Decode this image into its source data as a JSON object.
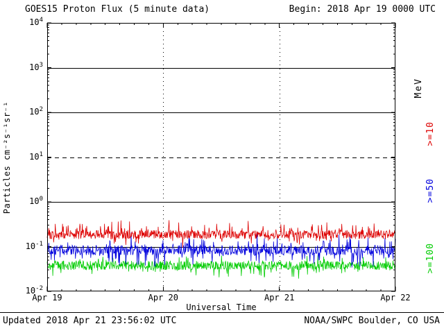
{
  "header": {
    "begin": "Begin: 2018 Apr 19 0000 UTC"
  },
  "footer": {
    "updated": "Updated 2018 Apr 21 23:56:02 UTC",
    "credit": "NOAA/SWPC Boulder, CO USA"
  },
  "chart_data": {
    "type": "line",
    "title": "GOES15 Proton Flux (5 minute data)",
    "xlabel": "Universal Time",
    "ylabel": "Particles cm⁻²s⁻¹sr⁻¹",
    "right_axis_label": "MeV",
    "y_scale": "log",
    "ylim": [
      0.01,
      10000
    ],
    "x_range": [
      "2018 Apr 19 0000 UTC",
      "2018 Apr 22 0000 UTC"
    ],
    "days": 3,
    "points_per_day": 288,
    "x_minor_tick_hours": 3,
    "x_ticks": [
      {
        "label": "Apr 19",
        "day": 0
      },
      {
        "label": "Apr 20",
        "day": 1
      },
      {
        "label": "Apr 21",
        "day": 2
      },
      {
        "label": "Apr 22",
        "day": 3
      }
    ],
    "y_ticks": [
      {
        "mantissa": "10",
        "exponent": "4",
        "value": 10000
      },
      {
        "mantissa": "10",
        "exponent": "3",
        "value": 1000
      },
      {
        "mantissa": "10",
        "exponent": "2",
        "value": 100
      },
      {
        "mantissa": "10",
        "exponent": "1",
        "value": 10
      },
      {
        "mantissa": "10",
        "exponent": "0",
        "value": 1
      },
      {
        "mantissa": "10",
        "exponent": "-1",
        "value": 0.1
      },
      {
        "mantissa": "10",
        "exponent": "-2",
        "value": 0.01
      }
    ],
    "hlines": [
      {
        "value": 1000,
        "style": "solid"
      },
      {
        "value": 100,
        "style": "solid"
      },
      {
        "value": 10,
        "style": "dashed"
      },
      {
        "value": 1,
        "style": "solid"
      },
      {
        "value": 0.1,
        "style": "solid"
      }
    ],
    "vlines": [
      {
        "day": 1,
        "style": "dotted"
      },
      {
        "day": 2,
        "style": "dotted"
      }
    ],
    "grid": "decade horizontal lines, dotted day boundaries",
    "legend_position": "right",
    "series": [
      {
        "name": ">=10",
        "unit": "MeV",
        "color": "#dd0000",
        "typical_level": 0.19,
        "approx_flux_range": [
          0.12,
          0.5
        ],
        "synthesis": {
          "log10_mean": -0.73,
          "log10_jitter": 0.1,
          "spike_probability": 0.18,
          "spike_log10_max": 0.25,
          "spike_upward_fraction": 0.72,
          "seed": 101
        }
      },
      {
        "name": ">=50",
        "unit": "MeV",
        "color": "#0000dd",
        "typical_level": 0.08,
        "approx_flux_range": [
          0.03,
          0.22
        ],
        "synthesis": {
          "log10_mean": -1.08,
          "log10_jitter": 0.11,
          "spike_probability": 0.2,
          "spike_log10_max": 0.32,
          "spike_upward_fraction": 0.5,
          "seed": 202
        }
      },
      {
        "name": ">=100",
        "unit": "MeV",
        "color": "#00cc00",
        "typical_level": 0.04,
        "approx_flux_range": [
          0.02,
          0.08
        ],
        "synthesis": {
          "log10_mean": -1.42,
          "log10_jitter": 0.1,
          "spike_probability": 0.18,
          "spike_log10_max": 0.2,
          "spike_upward_fraction": 0.45,
          "seed": 303
        }
      }
    ]
  }
}
